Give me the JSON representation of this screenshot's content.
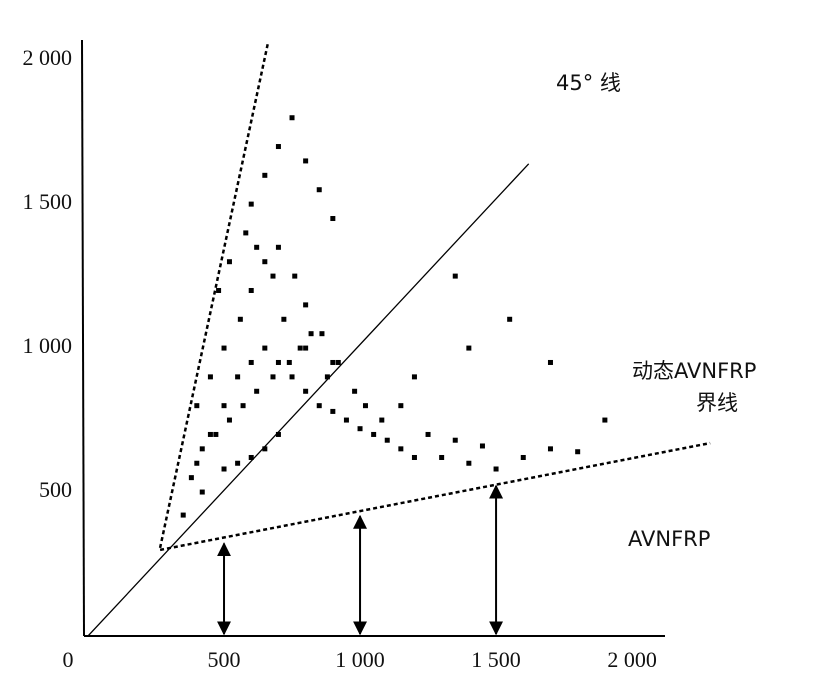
{
  "chart_data": {
    "type": "scatter",
    "xlim": [
      0,
      2121
    ],
    "ylim": [
      0,
      2070
    ],
    "xticks": [
      {
        "value": 0,
        "label": "0"
      },
      500,
      {
        "value": 1000,
        "label": "1 000"
      },
      {
        "value": 1500,
        "label": "1 500"
      },
      {
        "value": 2000,
        "label": "2 000"
      }
    ],
    "yticks": [
      500,
      {
        "value": 1000,
        "label": "1 000"
      },
      {
        "value": 1500,
        "label": "1 500"
      },
      {
        "value": 2000,
        "label": "2 000"
      }
    ],
    "color": "#000000",
    "x": [
      350,
      400,
      450,
      500,
      550,
      600,
      650,
      700,
      750,
      800,
      850,
      900,
      950,
      1000,
      1050,
      1100,
      1150,
      1200,
      1300,
      1400,
      1500,
      1600,
      1700,
      1800,
      380,
      420,
      480,
      520,
      580,
      620,
      680,
      720,
      780,
      820,
      880,
      920,
      980,
      1020,
      1080,
      1150,
      1250,
      1350,
      1450,
      400,
      450,
      500,
      560,
      600,
      650,
      700,
      760,
      800,
      860,
      900,
      420,
      470,
      520,
      570,
      620,
      680,
      740,
      800,
      600,
      650,
      700,
      750,
      800,
      850,
      900,
      500,
      550,
      600,
      650,
      700,
      1200,
      1400,
      1700,
      1900,
      1350,
      1550
    ],
    "values": [
      420,
      600,
      700,
      800,
      900,
      950,
      1000,
      950,
      900,
      850,
      800,
      780,
      750,
      720,
      700,
      680,
      650,
      620,
      620,
      600,
      580,
      620,
      650,
      640,
      550,
      500,
      1200,
      1300,
      1400,
      1350,
      1250,
      1100,
      1000,
      1050,
      900,
      950,
      850,
      800,
      750,
      800,
      700,
      680,
      660,
      800,
      900,
      1000,
      1100,
      1200,
      1300,
      1350,
      1250,
      1150,
      1050,
      950,
      650,
      700,
      750,
      800,
      850,
      900,
      950,
      1000,
      1500,
      1600,
      1700,
      1800,
      1650,
      1550,
      1450,
      580,
      600,
      620,
      650,
      700,
      900,
      1000,
      950,
      750,
      1250,
      1100
    ],
    "reference_lines": [
      {
        "style": "solid",
        "x": [
          0,
          1620
        ],
        "y": [
          0,
          1640
        ]
      },
      {
        "style": "dashed",
        "x": [
          265,
          662
        ],
        "y": [
          306,
          2062
        ]
      },
      {
        "style": "dashed",
        "x": [
          265,
          2287
        ],
        "y": [
          299,
          670
        ]
      }
    ],
    "arrows": [
      {
        "x": 500,
        "y": [
          0,
          335
        ]
      },
      {
        "x": 1000,
        "y": [
          0,
          430
        ]
      },
      {
        "x": 1500,
        "y": [
          0,
          535
        ]
      }
    ],
    "annotations": [
      "45° 线",
      "动态AVNFRP",
      "界线",
      "AVNFRP"
    ]
  }
}
